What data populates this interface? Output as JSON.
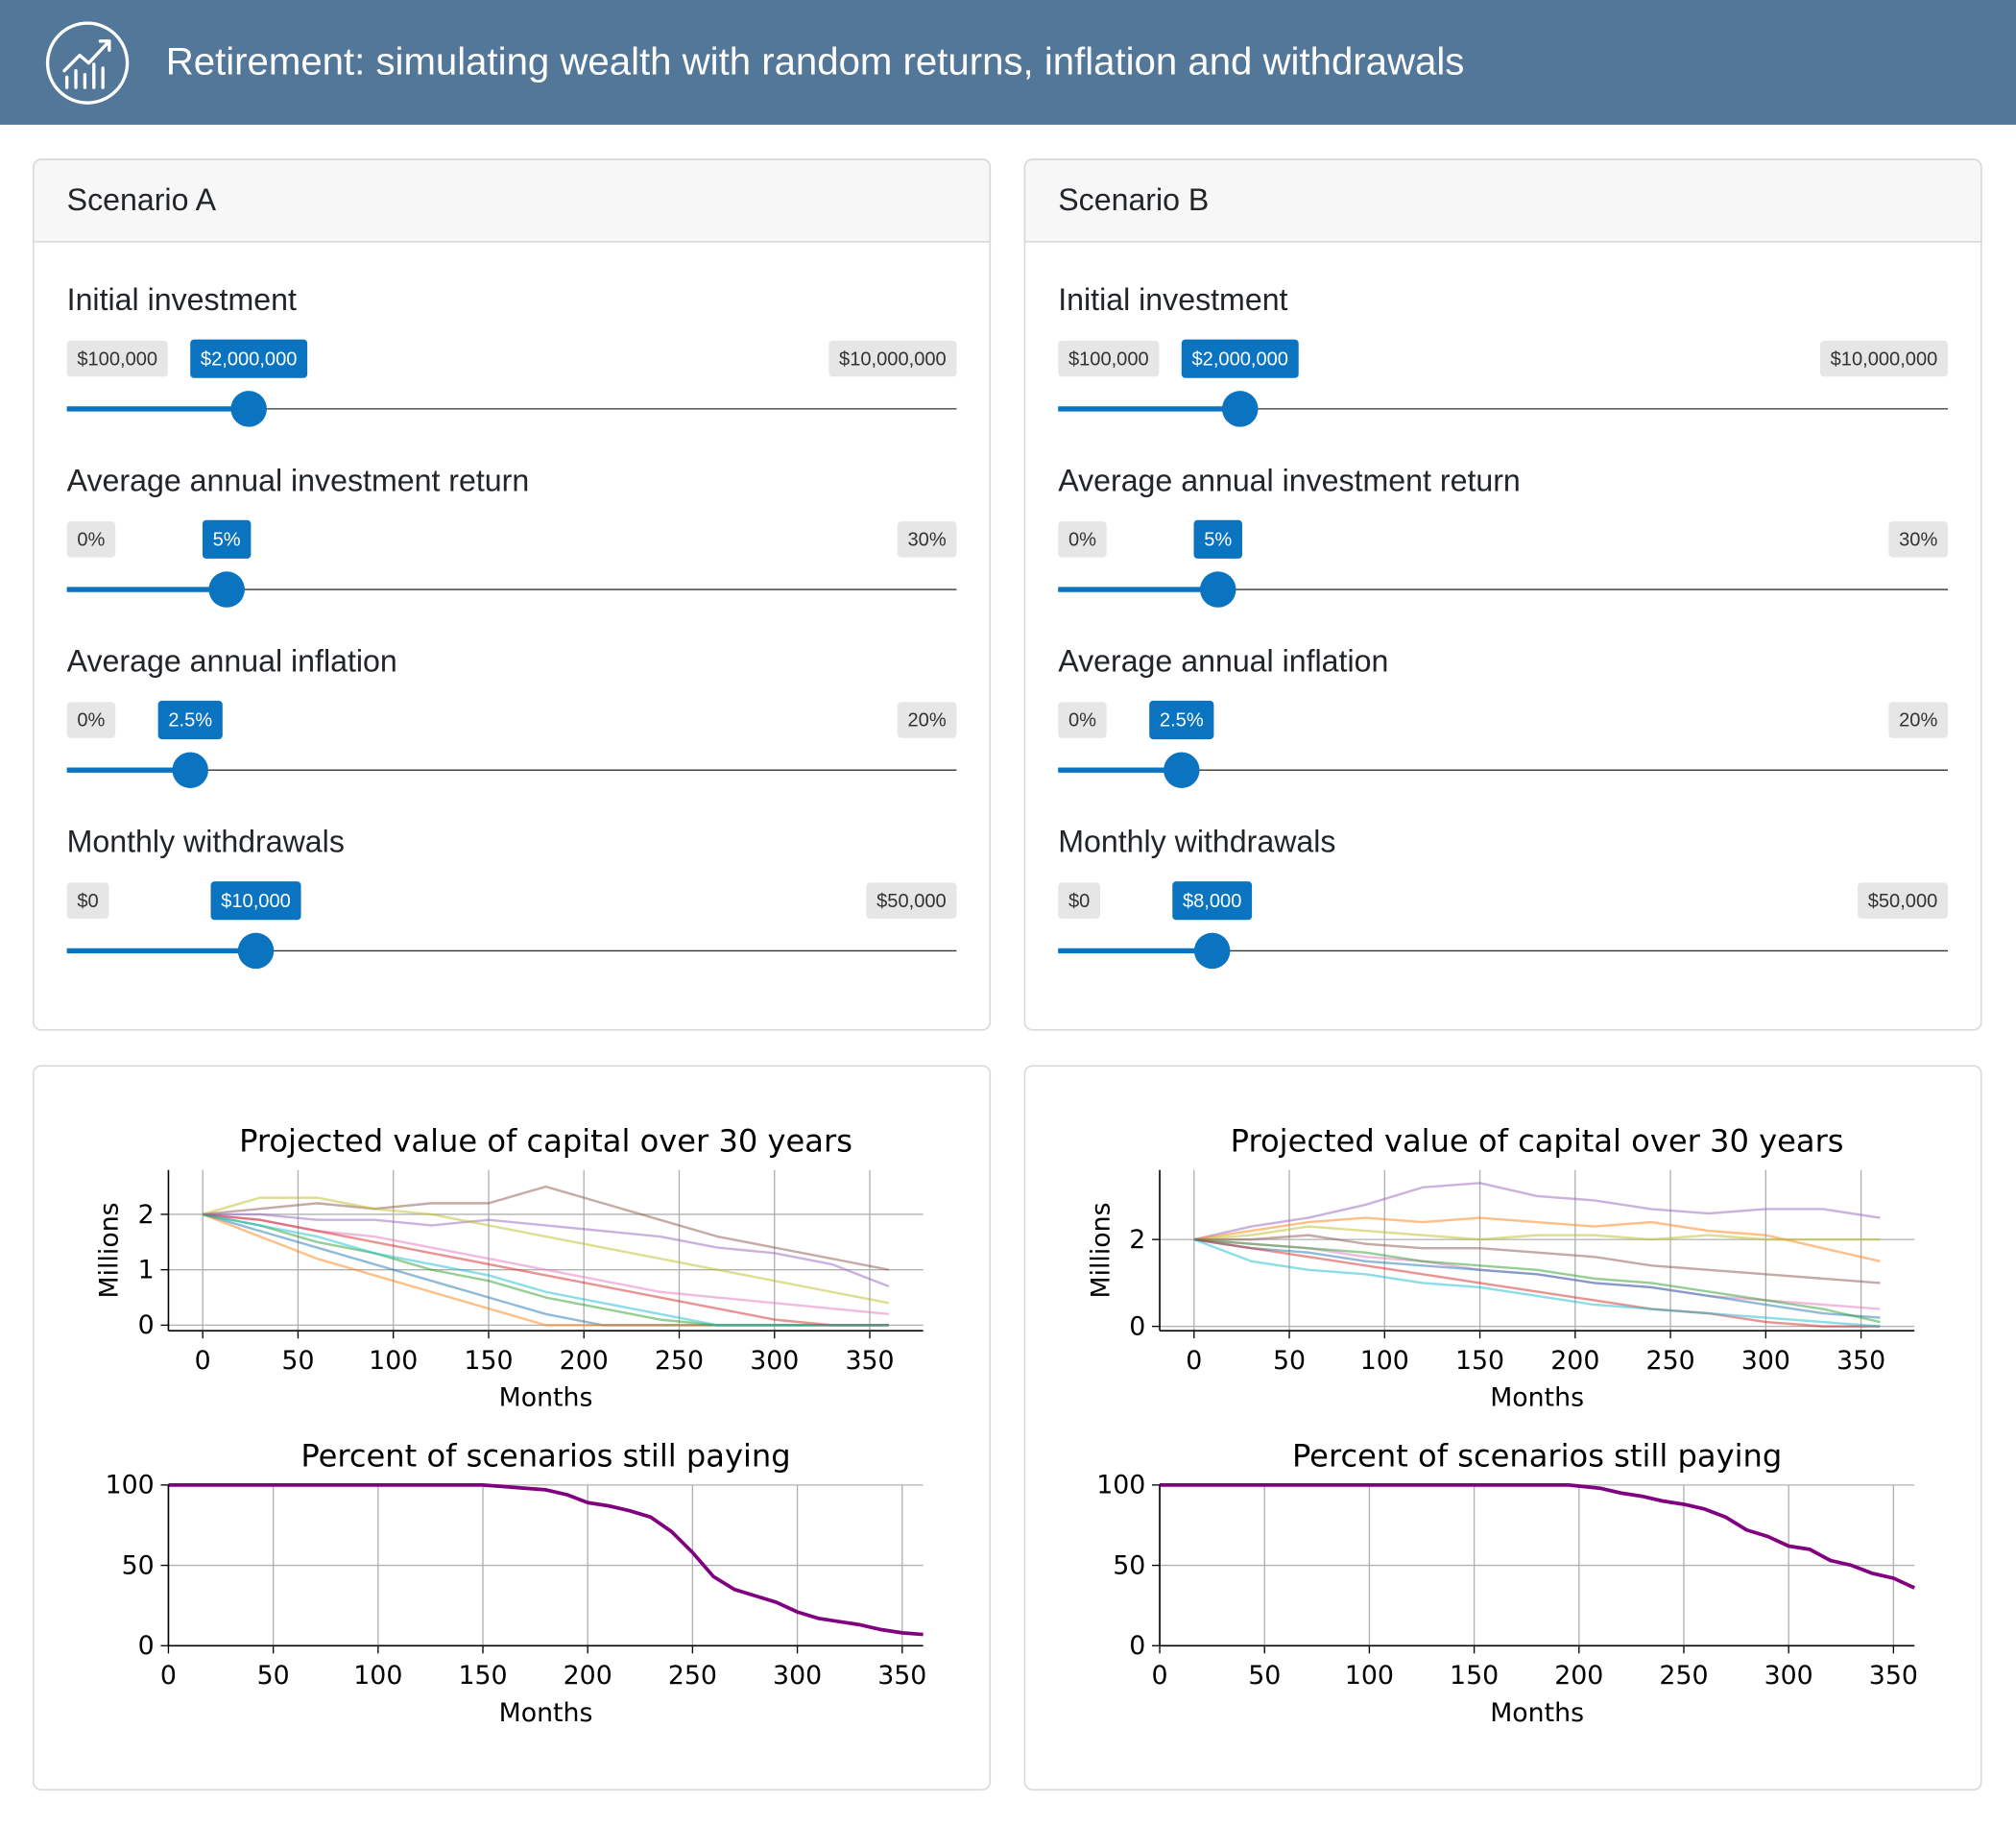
{
  "header": {
    "title": "Retirement: simulating wealth with random returns, inflation and withdrawals"
  },
  "scenarios": [
    {
      "title": "Scenario A",
      "sliders": [
        {
          "label": "Initial investment",
          "min": {
            "value": 100000,
            "label": "$100,000"
          },
          "value": {
            "value": 2000000,
            "label": "$2,000,000"
          },
          "max": {
            "value": 10000000,
            "label": "$10,000,000"
          }
        },
        {
          "label": "Average annual investment return",
          "min": {
            "value": 0,
            "label": "0%"
          },
          "value": {
            "value": 5,
            "label": "5%"
          },
          "max": {
            "value": 30,
            "label": "30%"
          }
        },
        {
          "label": "Average annual inflation",
          "min": {
            "value": 0,
            "label": "0%"
          },
          "value": {
            "value": 2.5,
            "label": "2.5%"
          },
          "max": {
            "value": 20,
            "label": "20%"
          }
        },
        {
          "label": "Monthly withdrawals",
          "min": {
            "value": 0,
            "label": "$0"
          },
          "value": {
            "value": 10000,
            "label": "$10,000"
          },
          "max": {
            "value": 50000,
            "label": "$50,000"
          }
        }
      ]
    },
    {
      "title": "Scenario B",
      "sliders": [
        {
          "label": "Initial investment",
          "min": {
            "value": 100000,
            "label": "$100,000"
          },
          "value": {
            "value": 2000000,
            "label": "$2,000,000"
          },
          "max": {
            "value": 10000000,
            "label": "$10,000,000"
          }
        },
        {
          "label": "Average annual investment return",
          "min": {
            "value": 0,
            "label": "0%"
          },
          "value": {
            "value": 5,
            "label": "5%"
          },
          "max": {
            "value": 30,
            "label": "30%"
          }
        },
        {
          "label": "Average annual inflation",
          "min": {
            "value": 0,
            "label": "0%"
          },
          "value": {
            "value": 2.5,
            "label": "2.5%"
          },
          "max": {
            "value": 20,
            "label": "20%"
          }
        },
        {
          "label": "Monthly withdrawals",
          "min": {
            "value": 0,
            "label": "$0"
          },
          "value": {
            "value": 8000,
            "label": "$8,000"
          },
          "max": {
            "value": 50000,
            "label": "$50,000"
          }
        }
      ]
    }
  ],
  "chart_data": [
    {
      "type": "line",
      "title": "Projected value of capital over 30 years",
      "x_label": "Months",
      "y_label": "Millions",
      "x": [
        0,
        30,
        60,
        90,
        120,
        150,
        180,
        210,
        240,
        270,
        300,
        330,
        360
      ],
      "series": [
        {
          "color": "#8c564b",
          "values": [
            2,
            2.1,
            2.2,
            2.1,
            2.2,
            2.2,
            2.5,
            2.2,
            1.9,
            1.6,
            1.4,
            1.2,
            1.0
          ]
        },
        {
          "color": "#9467bd",
          "values": [
            2,
            2.0,
            1.9,
            1.9,
            1.8,
            1.9,
            1.8,
            1.7,
            1.6,
            1.4,
            1.3,
            1.1,
            0.7
          ]
        },
        {
          "color": "#bcbd22",
          "values": [
            2,
            2.3,
            2.3,
            2.1,
            2.0,
            1.8,
            1.6,
            1.4,
            1.2,
            1.0,
            0.8,
            0.6,
            0.4
          ]
        },
        {
          "color": "#e377c2",
          "values": [
            2,
            1.9,
            1.7,
            1.6,
            1.4,
            1.2,
            1.0,
            0.8,
            0.6,
            0.5,
            0.4,
            0.3,
            0.2
          ]
        },
        {
          "color": "#1f77b4",
          "values": [
            2,
            1.7,
            1.4,
            1.1,
            0.8,
            0.5,
            0.2,
            0,
            0,
            0,
            0,
            0,
            0
          ]
        },
        {
          "color": "#ff7f0e",
          "values": [
            2,
            1.6,
            1.2,
            0.9,
            0.6,
            0.3,
            0,
            0,
            0,
            0,
            0,
            0,
            0
          ]
        },
        {
          "color": "#2ca02c",
          "values": [
            2,
            1.8,
            1.5,
            1.3,
            1.0,
            0.8,
            0.5,
            0.3,
            0.1,
            0,
            0,
            0,
            0
          ]
        },
        {
          "color": "#d62728",
          "values": [
            2,
            1.9,
            1.7,
            1.5,
            1.3,
            1.1,
            0.9,
            0.7,
            0.5,
            0.3,
            0.1,
            0,
            0
          ]
        },
        {
          "color": "#17becf",
          "values": [
            2,
            1.8,
            1.6,
            1.3,
            1.1,
            0.9,
            0.6,
            0.4,
            0.2,
            0,
            0,
            0,
            0
          ]
        }
      ],
      "xlim": [
        -18,
        378
      ],
      "ylim": [
        -0.1,
        2.8
      ],
      "xticks": [
        0,
        50,
        100,
        150,
        200,
        250,
        300,
        350
      ],
      "yticks": [
        0,
        1,
        2
      ],
      "grid": true
    },
    {
      "type": "line",
      "title": "Percent of scenarios still paying",
      "x_label": "Months",
      "x": [
        0,
        150,
        160,
        170,
        180,
        190,
        200,
        210,
        220,
        230,
        240,
        250,
        260,
        270,
        280,
        290,
        300,
        310,
        320,
        330,
        340,
        350,
        360
      ],
      "series": [
        {
          "color": "#800080",
          "values": [
            100,
            100,
            99,
            98,
            97,
            94,
            89,
            87,
            84,
            80,
            71,
            58,
            43,
            35,
            31,
            27,
            21,
            17,
            15,
            13,
            10,
            8,
            7
          ]
        }
      ],
      "xlim": [
        0,
        360
      ],
      "ylim": [
        0,
        100
      ],
      "xticks": [
        0,
        50,
        100,
        150,
        200,
        250,
        300,
        350
      ],
      "yticks": [
        0,
        50,
        100
      ],
      "grid": true
    },
    {
      "type": "line",
      "title": "Projected value of capital over 30 years",
      "x_label": "Months",
      "y_label": "Millions",
      "x": [
        0,
        30,
        60,
        90,
        120,
        150,
        180,
        210,
        240,
        270,
        300,
        330,
        360
      ],
      "series": [
        {
          "color": "#9467bd",
          "values": [
            2,
            2.3,
            2.5,
            2.8,
            3.2,
            3.3,
            3.0,
            2.9,
            2.7,
            2.6,
            2.7,
            2.7,
            2.5
          ]
        },
        {
          "color": "#ff7f0e",
          "values": [
            2,
            2.2,
            2.4,
            2.5,
            2.4,
            2.5,
            2.4,
            2.3,
            2.4,
            2.2,
            2.1,
            1.8,
            1.5
          ]
        },
        {
          "color": "#bcbd22",
          "values": [
            2,
            2.1,
            2.3,
            2.2,
            2.1,
            2.0,
            2.1,
            2.1,
            2.0,
            2.1,
            2.0,
            2.0,
            2.0
          ]
        },
        {
          "color": "#8c564b",
          "values": [
            2,
            2.0,
            2.1,
            1.9,
            1.8,
            1.8,
            1.7,
            1.6,
            1.4,
            1.3,
            1.2,
            1.1,
            1.0
          ]
        },
        {
          "color": "#e377c2",
          "values": [
            2,
            1.9,
            1.8,
            1.6,
            1.5,
            1.3,
            1.2,
            1.0,
            0.9,
            0.7,
            0.6,
            0.5,
            0.4
          ]
        },
        {
          "color": "#1f77b4",
          "values": [
            2,
            1.8,
            1.7,
            1.5,
            1.4,
            1.3,
            1.2,
            1.0,
            0.9,
            0.7,
            0.5,
            0.3,
            0.2
          ]
        },
        {
          "color": "#2ca02c",
          "values": [
            2,
            1.9,
            1.8,
            1.7,
            1.5,
            1.4,
            1.3,
            1.1,
            1.0,
            0.8,
            0.6,
            0.4,
            0.1
          ]
        },
        {
          "color": "#d62728",
          "values": [
            2,
            1.8,
            1.6,
            1.4,
            1.2,
            1.0,
            0.8,
            0.6,
            0.4,
            0.3,
            0.1,
            0,
            0
          ]
        },
        {
          "color": "#17becf",
          "values": [
            2,
            1.5,
            1.3,
            1.2,
            1.0,
            0.9,
            0.7,
            0.5,
            0.4,
            0.3,
            0.2,
            0.1,
            0
          ]
        }
      ],
      "xlim": [
        -18,
        378
      ],
      "ylim": [
        -0.1,
        3.6
      ],
      "xticks": [
        0,
        50,
        100,
        150,
        200,
        250,
        300,
        350
      ],
      "yticks": [
        0,
        2
      ],
      "grid": true
    },
    {
      "type": "line",
      "title": "Percent of scenarios still paying",
      "x_label": "Months",
      "x": [
        0,
        195,
        210,
        220,
        230,
        240,
        250,
        260,
        270,
        280,
        290,
        300,
        310,
        320,
        330,
        340,
        350,
        360
      ],
      "series": [
        {
          "color": "#800080",
          "values": [
            100,
            100,
            98,
            95,
            93,
            90,
            88,
            85,
            80,
            72,
            68,
            62,
            60,
            53,
            50,
            45,
            42,
            36
          ]
        }
      ],
      "xlim": [
        0,
        360
      ],
      "ylim": [
        0,
        100
      ],
      "xticks": [
        0,
        50,
        100,
        150,
        200,
        250,
        300,
        350
      ],
      "yticks": [
        0,
        50,
        100
      ],
      "grid": true
    }
  ]
}
